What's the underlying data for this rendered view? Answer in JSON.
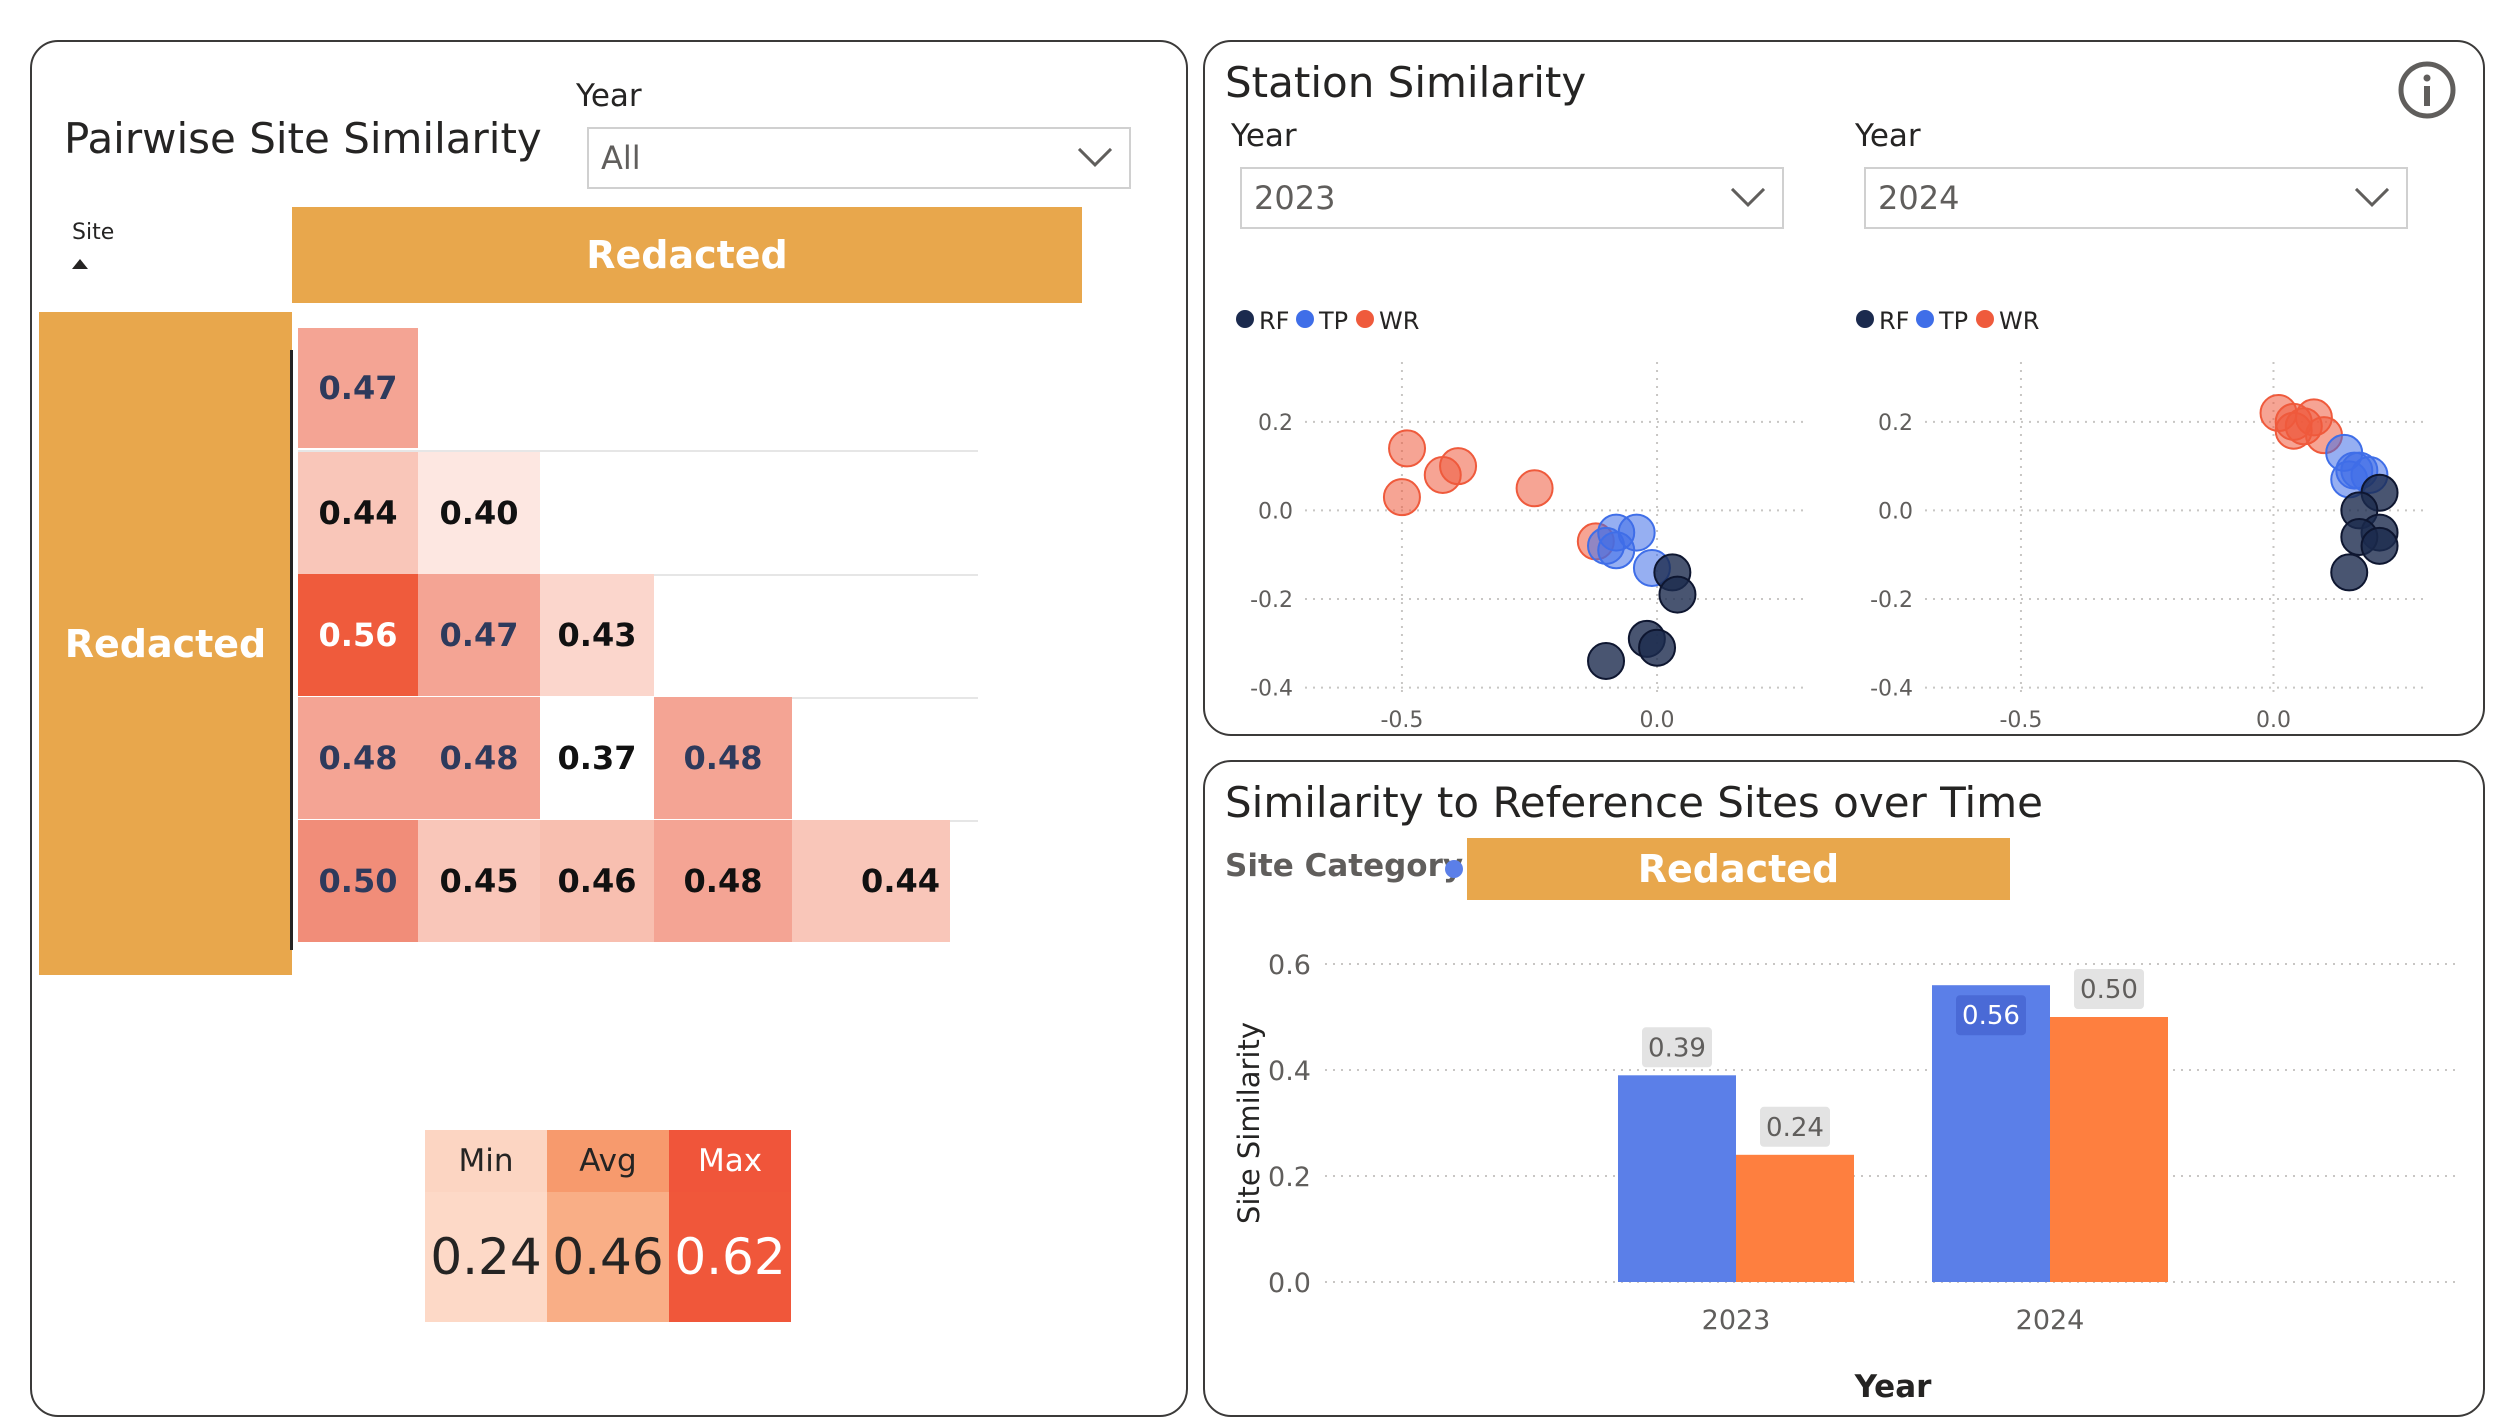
{
  "left": {
    "title": "Pairwise Site Similarity",
    "year_label": "Year",
    "year_value": "All",
    "site_header": "Site",
    "col_banner": "Redacted",
    "row_banner": "Redacted",
    "matrix": [
      [
        "0.47"
      ],
      [
        "0.44",
        "0.40"
      ],
      [
        "0.56",
        "0.47",
        "0.43"
      ],
      [
        "0.48",
        "0.48",
        "0.37",
        "0.48"
      ],
      [
        "0.50",
        "0.45",
        "0.46",
        "0.48",
        "0.44"
      ]
    ],
    "matrix_colors": [
      [
        "#f4a494"
      ],
      [
        "#f9c6b9",
        "#fde7e1"
      ],
      [
        "#ef5b3c",
        "#f4a494",
        "#fbd6cc"
      ],
      [
        "#f4a494",
        "#f4a494",
        "#ffffff",
        "#f4a494"
      ],
      [
        "#f18d79",
        "#f9c6b9",
        "#f8bfb0",
        "#f4a494",
        "#f9c6b9"
      ]
    ],
    "kpi": {
      "min_label": "Min",
      "avg_label": "Avg",
      "max_label": "Max",
      "min_value": "0.24",
      "avg_value": "0.46",
      "max_value": "0.62",
      "min_color": "#fdd9c7",
      "avg_color": "#f9ae86",
      "max_color": "#f0573a",
      "min_head_color": "#fcd5c2",
      "avg_head_color": "#f79a6d",
      "max_head_color": "#f0553a"
    }
  },
  "station": {
    "title": "Station Similarity",
    "info_icon": "info-icon",
    "left_year_label": "Year",
    "left_year_value": "2023",
    "right_year_label": "Year",
    "right_year_value": "2024",
    "legend": [
      {
        "name": "RF",
        "color": "#1b2a4e"
      },
      {
        "name": "TP",
        "color": "#3f6ee8"
      },
      {
        "name": "WR",
        "color": "#ef5a3c"
      }
    ],
    "chart_data": [
      {
        "type": "scatter",
        "xticks": [
          "-0.5",
          "0.0"
        ],
        "yticks": [
          "0.2",
          "0.0",
          "-0.2",
          "-0.4"
        ],
        "xlim": [
          -0.69,
          0.29
        ],
        "ylim": [
          -0.41,
          0.29
        ],
        "series": [
          {
            "name": "RF",
            "points": [
              [
                0.03,
                -0.14
              ],
              [
                0.04,
                -0.19
              ],
              [
                -0.02,
                -0.29
              ],
              [
                0.0,
                -0.31
              ],
              [
                -0.1,
                -0.34
              ]
            ]
          },
          {
            "name": "TP",
            "points": [
              [
                -0.08,
                -0.05
              ],
              [
                -0.04,
                -0.05
              ],
              [
                -0.1,
                -0.08
              ],
              [
                -0.08,
                -0.09
              ],
              [
                -0.01,
                -0.13
              ]
            ]
          },
          {
            "name": "WR",
            "points": [
              [
                -0.49,
                0.14
              ],
              [
                -0.42,
                0.08
              ],
              [
                -0.39,
                0.1
              ],
              [
                -0.5,
                0.03
              ],
              [
                -0.24,
                0.05
              ],
              [
                -0.12,
                -0.07
              ]
            ]
          }
        ]
      },
      {
        "type": "scatter",
        "xticks": [
          "-0.5",
          "0.0"
        ],
        "yticks": [
          "0.2",
          "0.0",
          "-0.2",
          "-0.4"
        ],
        "xlim": [
          -0.69,
          0.3
        ],
        "ylim": [
          -0.41,
          0.29
        ],
        "series": [
          {
            "name": "RF",
            "points": [
              [
                0.21,
                0.04
              ],
              [
                0.17,
                0.0
              ],
              [
                0.21,
                -0.05
              ],
              [
                0.17,
                -0.06
              ],
              [
                0.21,
                -0.08
              ],
              [
                0.15,
                -0.14
              ]
            ]
          },
          {
            "name": "TP",
            "points": [
              [
                0.14,
                0.13
              ],
              [
                0.16,
                0.09
              ],
              [
                0.19,
                0.08
              ],
              [
                0.15,
                0.07
              ],
              [
                0.17,
                0.09
              ]
            ]
          },
          {
            "name": "WR",
            "points": [
              [
                0.01,
                0.22
              ],
              [
                0.04,
                0.2
              ],
              [
                0.08,
                0.21
              ],
              [
                0.04,
                0.18
              ],
              [
                0.06,
                0.19
              ],
              [
                0.1,
                0.17
              ]
            ]
          }
        ]
      }
    ]
  },
  "timeline": {
    "title": "Similarity to Reference Sites over Time",
    "category_label": "Site Category",
    "category_banner": "Redacted",
    "chart_data": {
      "type": "bar",
      "categories": [
        "2023",
        "2024"
      ],
      "series": [
        {
          "color": "#5b7fe8",
          "values": [
            0.39,
            0.56
          ]
        },
        {
          "color": "#fe7f3f",
          "values": [
            0.24,
            0.5
          ]
        }
      ],
      "data_labels": [
        [
          "0.39",
          "0.56"
        ],
        [
          "0.24",
          "0.50"
        ]
      ],
      "ylim": [
        0,
        0.6
      ],
      "yticks": [
        "0.0",
        "0.2",
        "0.4",
        "0.6"
      ],
      "xlabel": "Year",
      "ylabel": "Site Similarity",
      "grid": true
    }
  }
}
